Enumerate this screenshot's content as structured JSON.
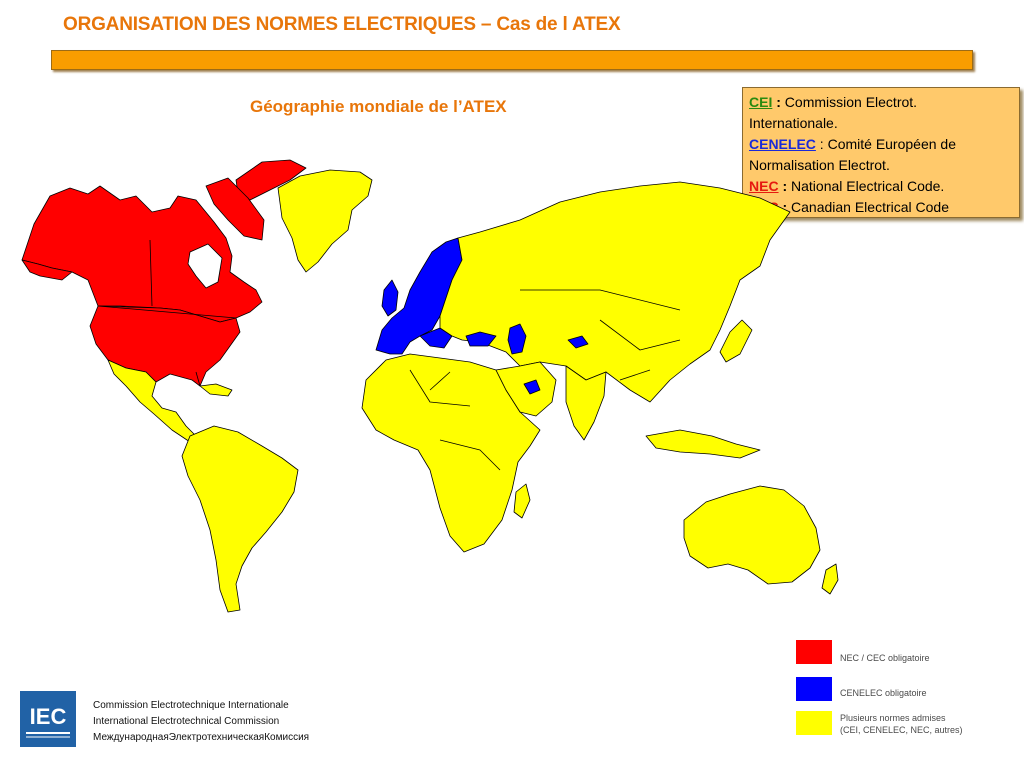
{
  "header": {
    "title": "ORGANISATION DES NORMES ELECTRIQUES – Cas de l ATEX",
    "subtitle": "Géographie mondiale de l’ATEX"
  },
  "definitions": [
    {
      "abbr": "CEI",
      "sep": " : ",
      "text": "Commission Electrot.",
      "abbr_color": "#2a8a10"
    },
    {
      "abbr": "",
      "sep": "",
      "text": "Internationale.",
      "abbr_color": ""
    },
    {
      "abbr": "CENELEC",
      "sep": " : ",
      "text": "Comité Européen de",
      "abbr_color": "#1a2ad8"
    },
    {
      "abbr": "",
      "sep": "",
      "text": "Normalisation Electrot.",
      "abbr_color": ""
    },
    {
      "abbr": "NEC",
      "sep": " : ",
      "text": "National Electrical Code.",
      "abbr_color": "#e61a10"
    },
    {
      "abbr": "CEC",
      "sep": " : ",
      "text": "Canadian Electrical Code",
      "abbr_color": "#e61a10"
    }
  ],
  "map_legend": [
    {
      "color": "#ff0000",
      "label_line1": "NEC / CEC obligatoire",
      "label_line2": ""
    },
    {
      "color": "#0000ff",
      "label_line1": "CENELEC obligatoire",
      "label_line2": ""
    },
    {
      "color": "#ffff00",
      "label_line1": "Plusieurs normes admises",
      "label_line2": "(CEI, CENELEC, NEC, autres)"
    }
  ],
  "map_regions": {
    "nec_cec": [
      "Canada",
      "USA"
    ],
    "cenelec": [
      "Europe"
    ],
    "mixed": [
      "Greenland",
      "Latin America",
      "Africa",
      "Asia",
      "Oceania"
    ]
  },
  "colors": {
    "accent": "#e8760a",
    "bar": "#f99d00",
    "legend_bg": "#ffc96b",
    "nec_cec": "#ff0000",
    "cenelec": "#0000ff",
    "mixed": "#ffff00",
    "iec_blue": "#2162a6"
  },
  "footer": {
    "logo_text": "IEC",
    "lines": [
      "Commission Electrotechnique Internationale",
      "International Electrotechnical Commission",
      "МеждународнаяЭлектротехническаяКомиссия"
    ]
  }
}
